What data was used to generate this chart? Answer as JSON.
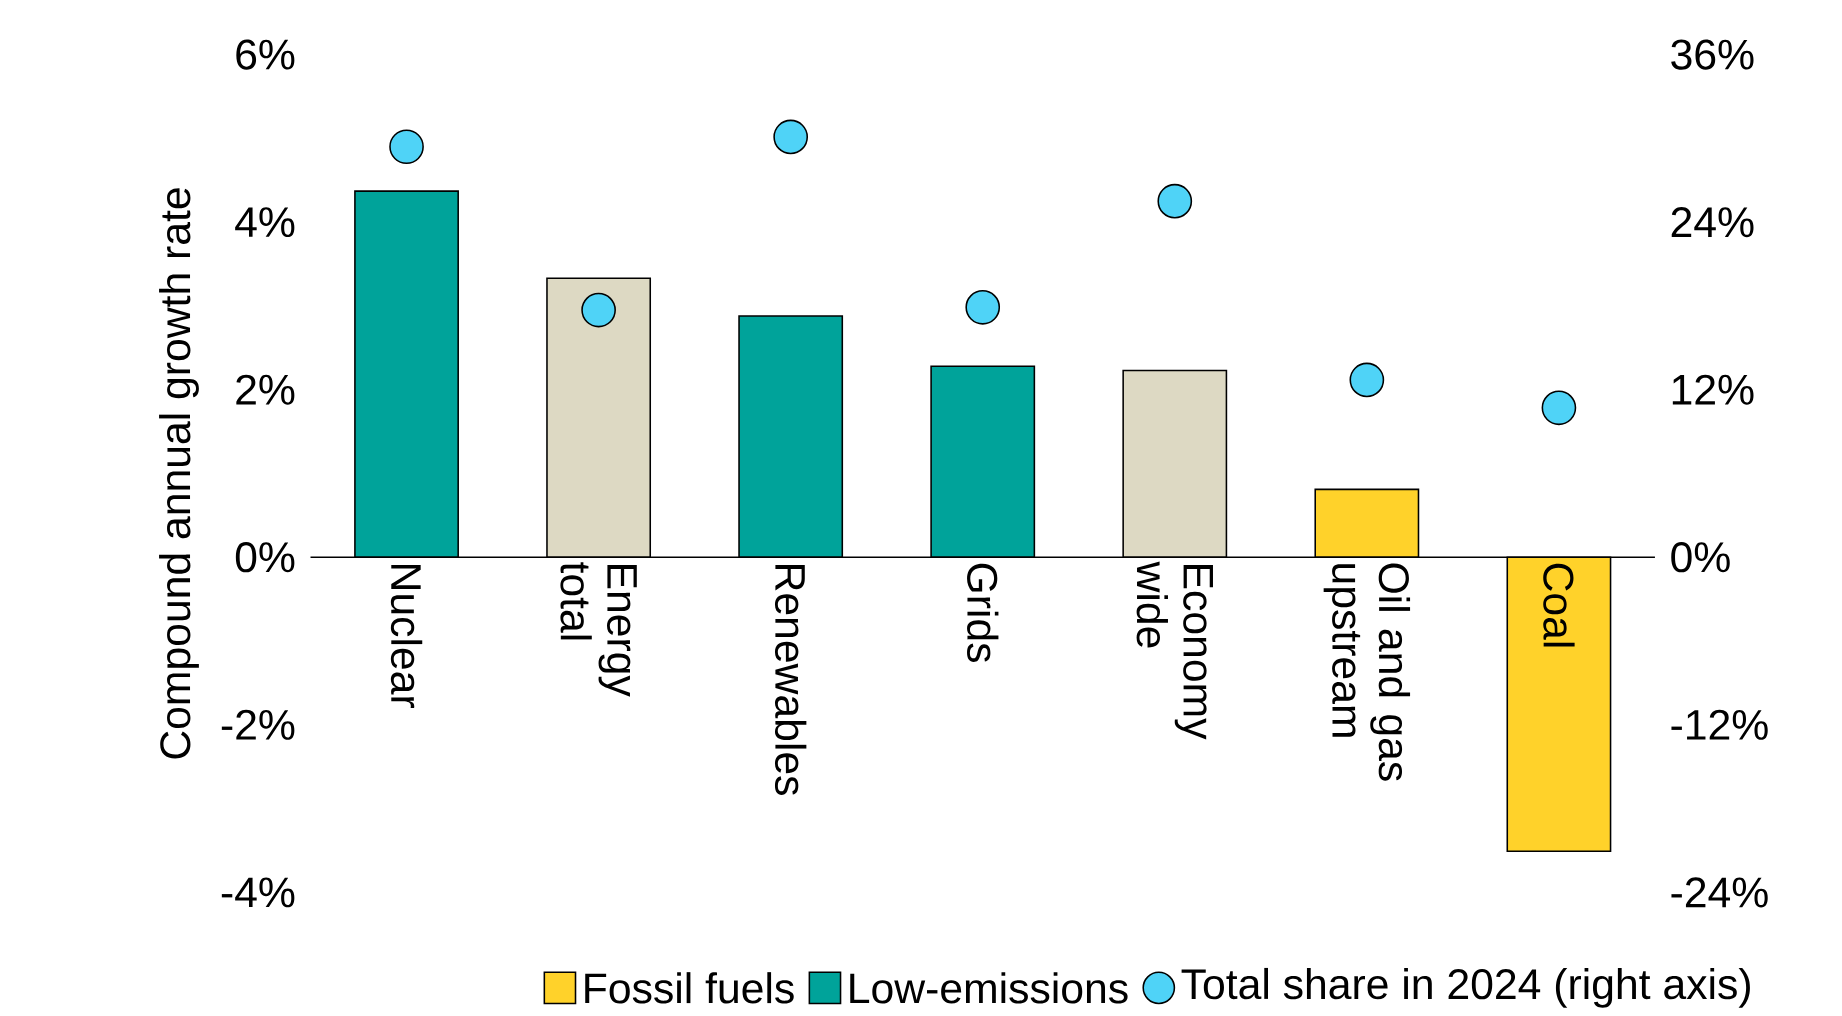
{
  "chart_data": {
    "type": "bar",
    "ylabel": "Compound annual growth rate",
    "categories": [
      "Nuclear",
      "Energy total",
      "Renewables",
      "Grids",
      "Economy wide",
      "Oil and gas upstream",
      "Coal"
    ],
    "series": [
      {
        "name": "Fossil fuels",
        "color": "#ffd22a",
        "values": [
          null,
          null,
          null,
          null,
          null,
          0.81,
          -3.51
        ]
      },
      {
        "name": "Low-emissions",
        "color": "#00a39a",
        "values": [
          4.37,
          null,
          2.88,
          2.28,
          null,
          null,
          null
        ]
      },
      {
        "color": "#ddd9c3",
        "values": [
          null,
          3.33,
          null,
          null,
          2.23,
          null,
          null
        ]
      },
      {
        "name": "Total share in 2024 (right axis)",
        "type": "scatter",
        "axis": "y2",
        "color": "#4fd3f7",
        "values": [
          29.4,
          17.7,
          30.1,
          17.9,
          25.5,
          12.7,
          10.7
        ]
      }
    ],
    "ylim": [
      -4,
      6
    ],
    "yticks": [
      {
        "value": -4,
        "label": "-4%"
      },
      {
        "value": -2,
        "label": "-2%"
      },
      {
        "value": 0,
        "label": "0%"
      },
      {
        "value": 2,
        "label": "2%"
      },
      {
        "value": 4,
        "label": "4%"
      },
      {
        "value": 6,
        "label": "6%"
      }
    ],
    "y2lim": [
      -24,
      36
    ],
    "y2ticks": [
      {
        "value": -24,
        "label": "-24%"
      },
      {
        "value": -12,
        "label": "-12%"
      },
      {
        "value": 0,
        "label": "0%"
      },
      {
        "value": 12,
        "label": "12%"
      },
      {
        "value": 24,
        "label": "24%"
      },
      {
        "value": 36,
        "label": "36%"
      }
    ],
    "marker": "circle",
    "legend": "bottom"
  }
}
